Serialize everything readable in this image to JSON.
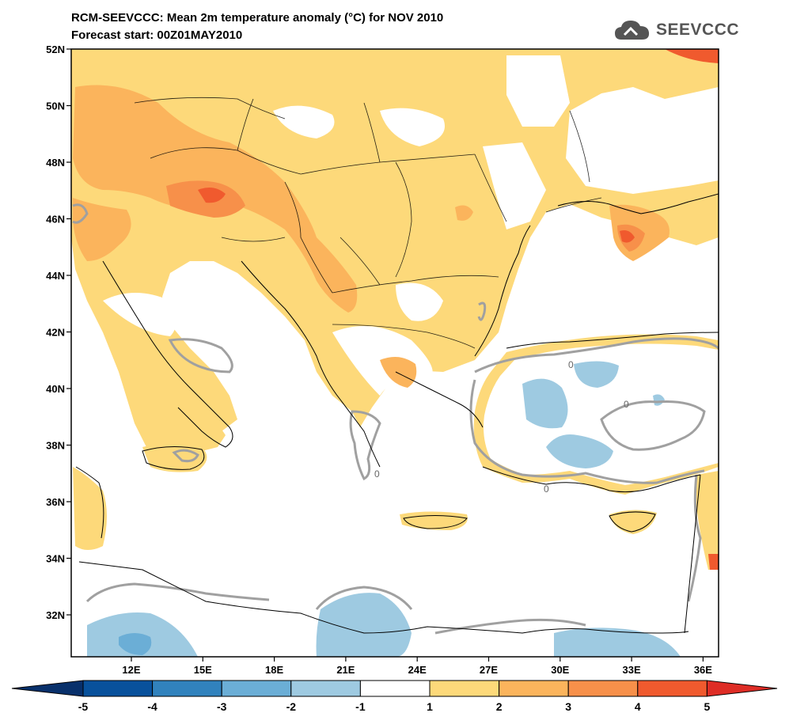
{
  "header": {
    "title_line1": "RCM-SEEVCCC: Mean 2m temperature anomaly (°C) for NOV 2010",
    "title_line2": "Forecast start: 00Z01MAY2010",
    "logo_text": "SEEVCCC"
  },
  "map": {
    "lat_labels": [
      "52N",
      "50N",
      "48N",
      "46N",
      "44N",
      "42N",
      "40N",
      "38N",
      "36N",
      "34N",
      "32N"
    ],
    "lon_labels": [
      "12E",
      "15E",
      "18E",
      "21E",
      "24E",
      "27E",
      "30E",
      "33E",
      "36E"
    ],
    "contour_labels": [
      "0",
      "0",
      "0",
      "0"
    ],
    "colors": {
      "land_warm1": "#fdd97a",
      "land_warm2": "#fbb45c",
      "land_warm3": "#f7904a",
      "land_warm4": "#f05a2e",
      "cool1": "#9ecae1",
      "cool2": "#6baed6",
      "zero_contour": "#a0a0a0",
      "coast": "#000000"
    }
  },
  "colorbar": {
    "tick_labels": [
      "-5",
      "-4",
      "-3",
      "-2",
      "-1",
      "1",
      "2",
      "3",
      "4",
      "5"
    ],
    "colors": [
      "#08519c",
      "#3182bd",
      "#6baed6",
      "#9ecae1",
      "#ffffff",
      "#fdd97a",
      "#fbb45c",
      "#f7904a",
      "#f05a2e"
    ],
    "left_arrow_color": "#08306b",
    "right_arrow_color": "#de2d26"
  }
}
